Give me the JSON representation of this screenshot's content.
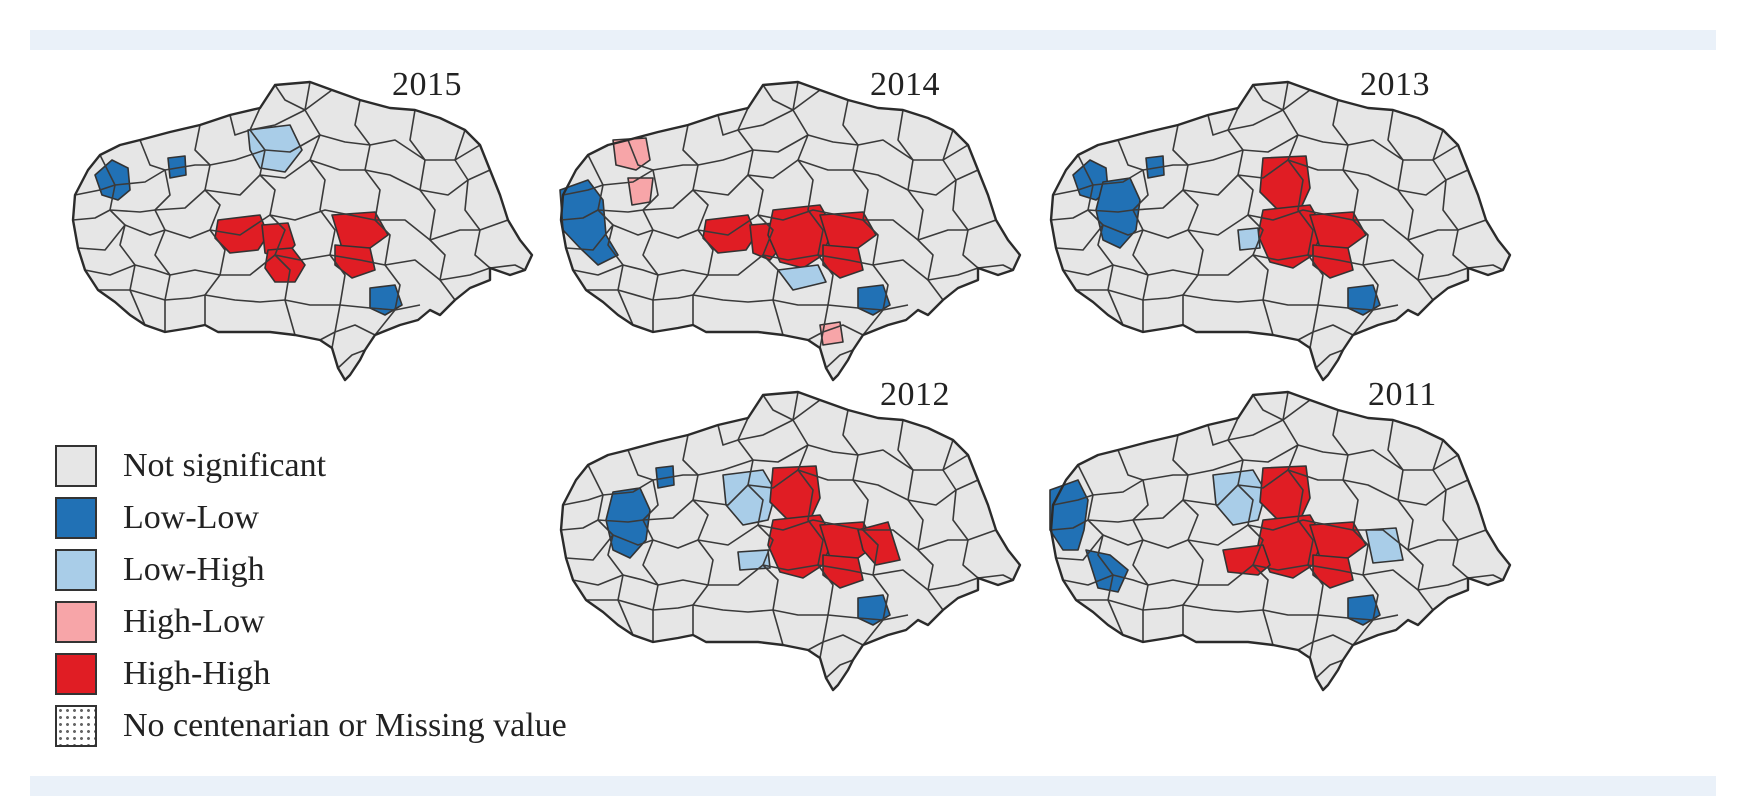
{
  "figure": {
    "panels": [
      {
        "title": "2015",
        "regions": {
          "nw1": "Low-Low",
          "nw2": "Low-Low",
          "nc": "Low-High",
          "cw1": "High-High",
          "cw2": "High-High",
          "cs": "High-High",
          "ce1": "High-High",
          "ce2": "High-High",
          "se": "Low-Low"
        }
      },
      {
        "title": "2014",
        "regions": {
          "nw3": "High-Low",
          "nw4": "High-Low",
          "w": "Low-Low",
          "cw1": "High-High",
          "cw2": "High-High",
          "cc": "High-High",
          "ce1": "High-High",
          "ce2": "High-High",
          "s1": "Low-High",
          "se": "Low-Low",
          "s2": "High-Low"
        }
      },
      {
        "title": "2013",
        "regions": {
          "nw1": "Low-Low",
          "nw2": "Low-Low",
          "w2": "Low-Low",
          "nc2": "High-High",
          "cc": "High-High",
          "ce1": "High-High",
          "ce2": "High-High",
          "cw3": "Low-High",
          "se": "Low-Low"
        }
      },
      {
        "title": "2012",
        "regions": {
          "nw2": "Low-Low",
          "w2": "Low-Low",
          "nc3": "Low-High",
          "cs2": "Low-High",
          "nc2": "High-High",
          "cc": "High-High",
          "ce1": "High-High",
          "ce2": "High-High",
          "ce3": "High-High",
          "se": "Low-Low"
        }
      },
      {
        "title": "2011",
        "regions": {
          "w3": "Low-Low",
          "w4": "Low-Low",
          "nc3": "Low-High",
          "ce4": "Low-High",
          "nc2": "High-High",
          "cc": "High-High",
          "cw4": "High-High",
          "ce1": "High-High",
          "ce2": "High-High",
          "se": "Low-Low"
        }
      }
    ]
  },
  "legend": {
    "items": [
      {
        "label": "Not significant",
        "category": "Not significant",
        "color": "#e6e6e6"
      },
      {
        "label": "Low-Low",
        "category": "Low-Low",
        "color": "#2171b5"
      },
      {
        "label": "Low-High",
        "category": "Low-High",
        "color": "#a9cde8"
      },
      {
        "label": "High-Low",
        "category": "High-Low",
        "color": "#f7a5a8"
      },
      {
        "label": "High-High",
        "category": "High-High",
        "color": "#e01d24"
      },
      {
        "label": "No centenarian or Missing value",
        "category": "Missing",
        "color": "#ffffff"
      }
    ]
  }
}
